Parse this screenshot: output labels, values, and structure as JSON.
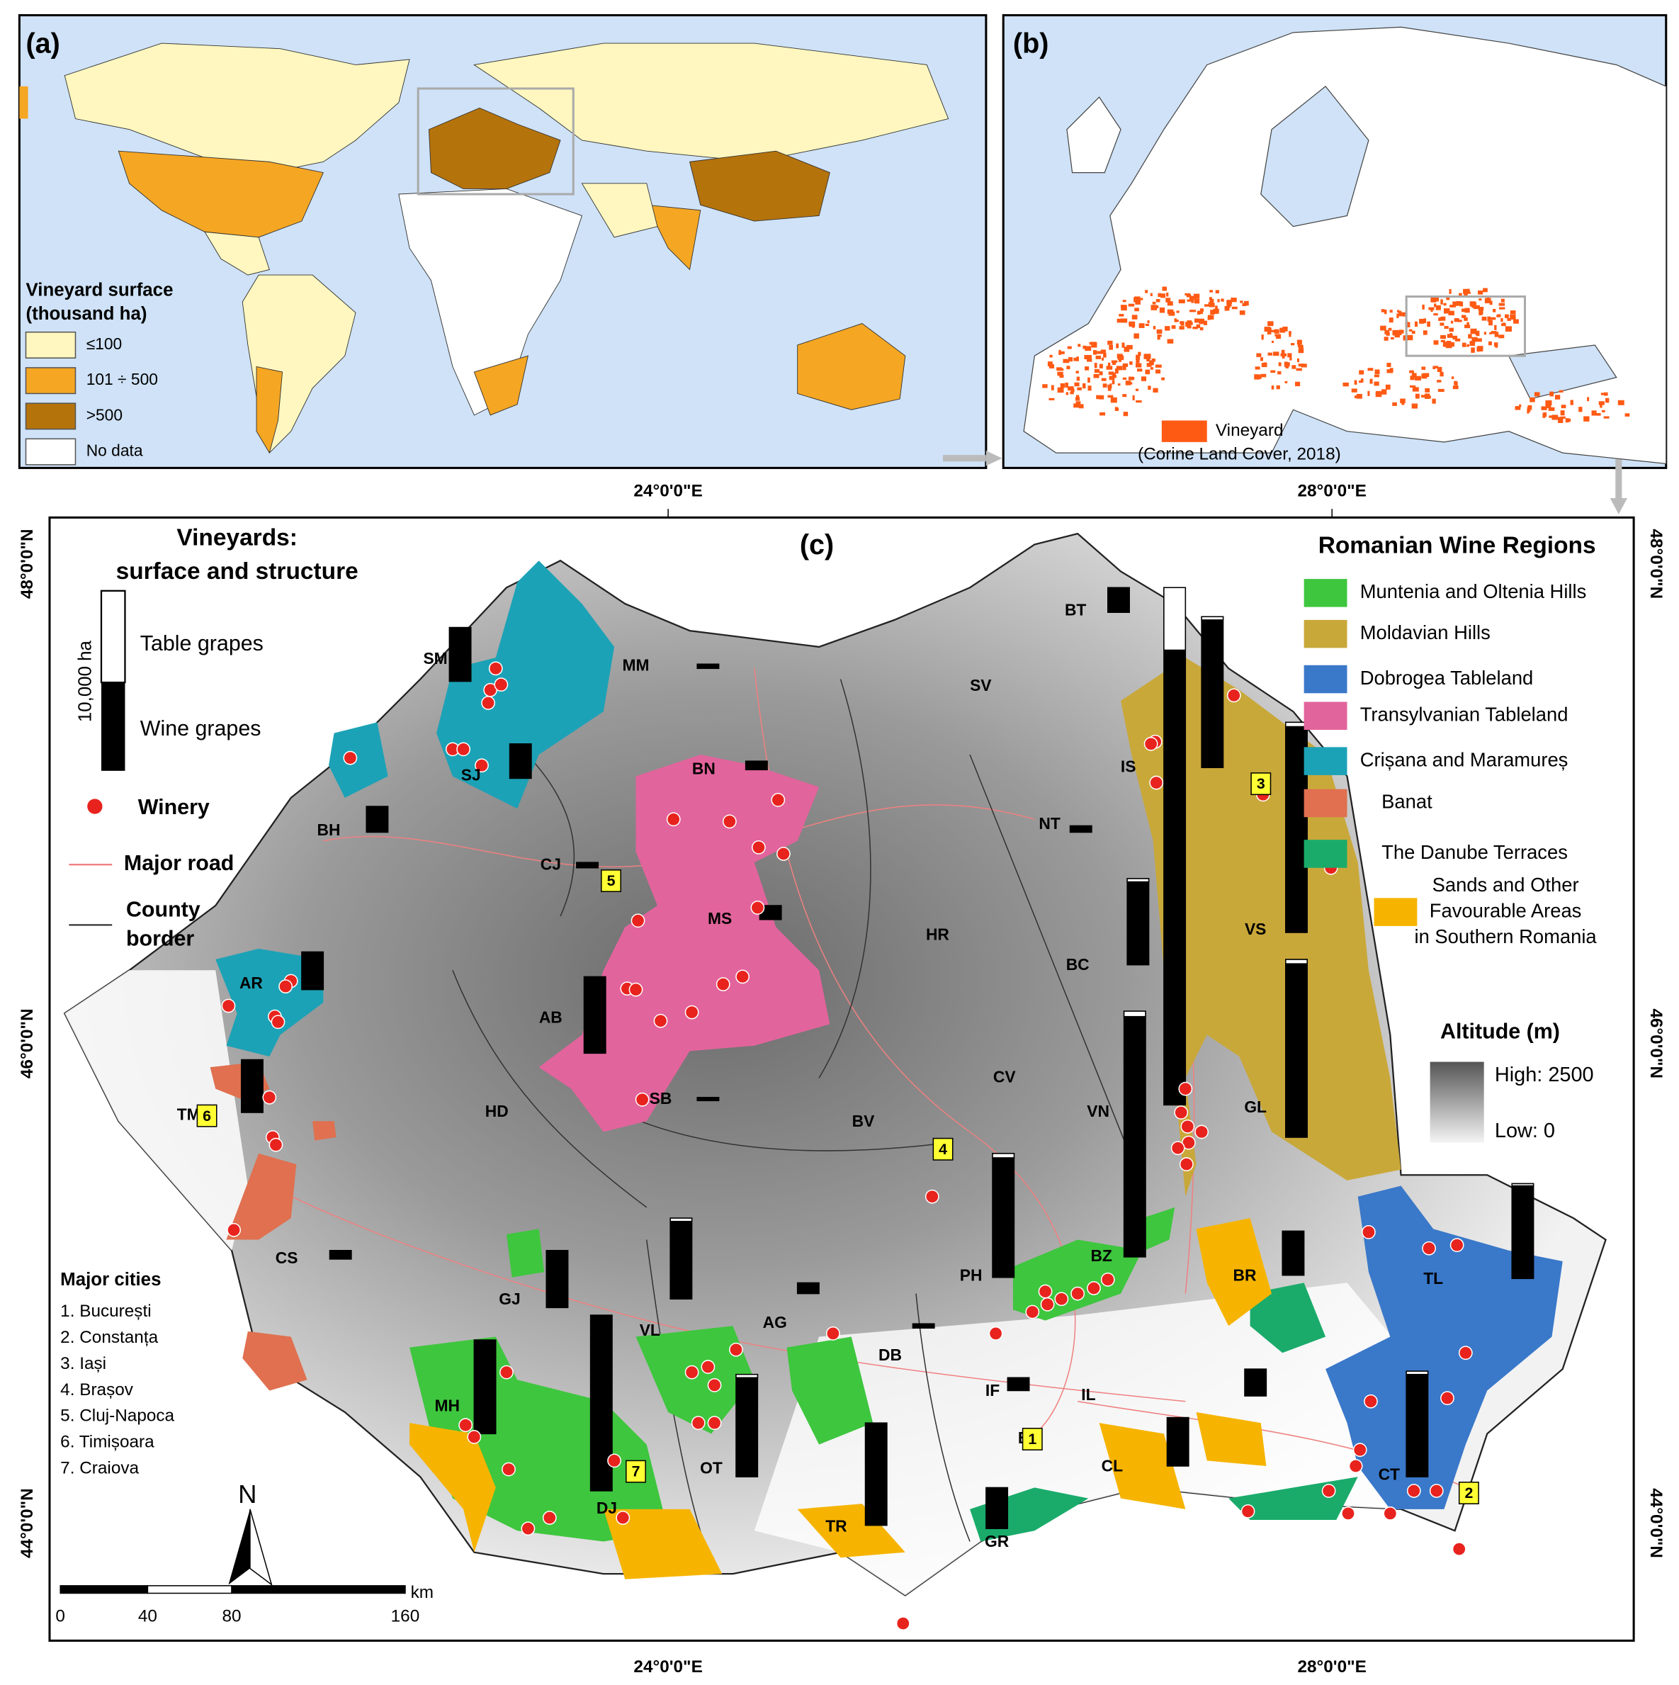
{
  "panel_a": {
    "label": "(a)",
    "legend_title": [
      "Vineyard surface",
      "(thousand ha)"
    ],
    "legend_items": [
      "≤100",
      "101 ÷ 500",
      ">500",
      "No data"
    ]
  },
  "panel_b": {
    "label": "(b)",
    "legend": [
      "Vineyard",
      "(Corine Land Cover, 2018)"
    ]
  },
  "graticule": {
    "lon": [
      "24°0'0\"E",
      "28°0'0\"E"
    ],
    "lat": [
      "48°0'0\"N",
      "46°0'0\"N",
      "44°0'0\"N"
    ]
  },
  "panel_c": {
    "label": "(c)",
    "vineyard_legend": {
      "title": [
        "Vineyards:",
        "surface and structure"
      ],
      "scale": "10,000 ha",
      "table": "Table grapes",
      "wine": "Wine grapes"
    },
    "winery": "Winery",
    "road": "Major road",
    "border": [
      "County",
      "border"
    ],
    "regions_title": "Romanian Wine Regions",
    "regions": [
      {
        "name": [
          "Muntenia and Oltenia Hills"
        ],
        "color": "#3ec63e"
      },
      {
        "name": [
          "Moldavian Hills"
        ],
        "color": "#c9a83a"
      },
      {
        "name": [
          "Dobrogea Tableland"
        ],
        "color": "#3a78c9"
      },
      {
        "name": [
          "Transylvanian Tableland"
        ],
        "color": "#e2649c"
      },
      {
        "name": [
          "Crișana and Maramureș"
        ],
        "color": "#1ca2b6"
      },
      {
        "name": [
          "Banat"
        ],
        "color": "#e0704f"
      },
      {
        "name": [
          "The Danube Terraces"
        ],
        "color": "#1aab6b"
      },
      {
        "name": [
          "Sands and Other",
          "Favourable Areas",
          "in Southern Romania"
        ],
        "color": "#f6b400"
      }
    ],
    "altitude": {
      "title": "Altitude (m)",
      "high": "High: 2500",
      "low": "Low: 0"
    },
    "cities_title": "Major cities",
    "cities": [
      "1. București",
      "2. Constanța",
      "3. Iași",
      "4. Brașov",
      "5. Cluj-Napoca",
      "6. Timișoara",
      "7. Craiova"
    ],
    "city_markers": [
      "1",
      "2",
      "3",
      "4",
      "5",
      "6",
      "7"
    ],
    "north": "N",
    "scale": {
      "unit": "km",
      "ticks": [
        "0",
        "40",
        "80",
        "160"
      ]
    },
    "counties": [
      "BT",
      "SM",
      "MM",
      "SV",
      "SJ",
      "BN",
      "IS",
      "BH",
      "NT",
      "CJ",
      "MS",
      "HR",
      "BC",
      "VS",
      "AR",
      "AB",
      "CV",
      "GL",
      "TM",
      "SB",
      "HD",
      "VN",
      "BV",
      "CS",
      "PH",
      "BZ",
      "BR",
      "TL",
      "GJ",
      "VL",
      "AG",
      "DB",
      "MH",
      "IF",
      "IL",
      "OT",
      "DJ",
      "TR",
      "CL",
      "CT",
      "GR",
      "B"
    ]
  }
}
